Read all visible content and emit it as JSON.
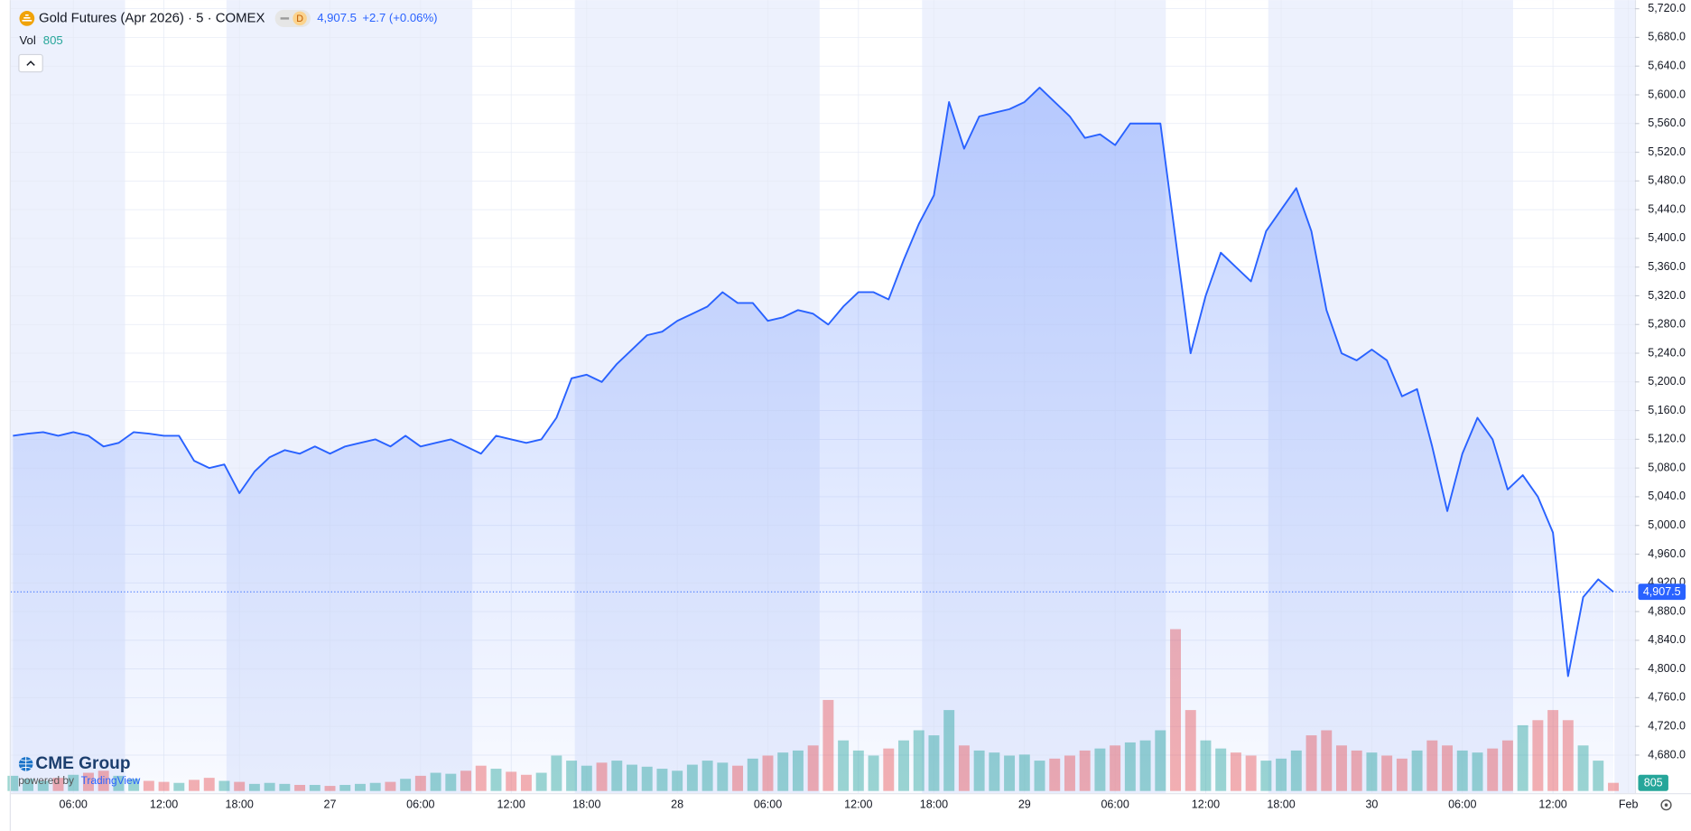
{
  "header": {
    "symbol": "Gold Futures (Apr 2026) · 5 · COMEX",
    "badge": "D",
    "price": "4,907.5",
    "change": "+2.7 (+0.06%)",
    "vol_label": "Vol"
  },
  "branding": {
    "logo": "CME Group",
    "powered": "powered by",
    "platform": "TradingView"
  },
  "chart_data": {
    "type": "line",
    "color": "#2962ff",
    "up_color": "#26a69a",
    "down_color": "#ef5350",
    "grid": true,
    "categories": [
      null,
      null,
      null,
      null,
      "06:00",
      null,
      null,
      null,
      null,
      null,
      "12:00",
      null,
      null,
      null,
      null,
      "18:00",
      null,
      null,
      null,
      null,
      null,
      "27",
      null,
      null,
      null,
      null,
      null,
      "06:00",
      null,
      null,
      null,
      null,
      null,
      "12:00",
      null,
      null,
      null,
      null,
      "18:00",
      null,
      null,
      null,
      null,
      null,
      "28",
      null,
      null,
      null,
      null,
      null,
      "06:00",
      null,
      null,
      null,
      null,
      null,
      "12:00",
      null,
      null,
      null,
      null,
      "18:00",
      null,
      null,
      null,
      null,
      null,
      "29",
      null,
      null,
      null,
      null,
      null,
      "06:00",
      null,
      null,
      null,
      null,
      null,
      "12:00",
      null,
      null,
      null,
      null,
      "18:00",
      null,
      null,
      null,
      null,
      null,
      "30",
      null,
      null,
      null,
      null,
      null,
      "06:00",
      null,
      null,
      null,
      null,
      null,
      "12:00",
      null,
      null,
      null,
      null,
      "Feb"
    ],
    "values": [
      5125,
      5128,
      5130,
      5125,
      5130,
      5125,
      5110,
      5115,
      5130,
      5128,
      5125,
      5125,
      5090,
      5080,
      5085,
      5045,
      5075,
      5095,
      5105,
      5100,
      5110,
      5100,
      5110,
      5115,
      5120,
      5110,
      5125,
      5110,
      5115,
      5120,
      5110,
      5100,
      5125,
      5120,
      5115,
      5120,
      5150,
      5205,
      5210,
      5200,
      5225,
      5245,
      5265,
      5270,
      5285,
      5295,
      5305,
      5325,
      5310,
      5310,
      5285,
      5290,
      5300,
      5295,
      5280,
      5305,
      5325,
      5325,
      5315,
      5370,
      5420,
      5460,
      5590,
      5525,
      5570,
      5575,
      5580,
      5590,
      5610,
      5590,
      5570,
      5540,
      5545,
      5530,
      5560,
      5560,
      5560,
      5400,
      5240,
      5320,
      5380,
      5360,
      5340,
      5410,
      5440,
      5470,
      5410,
      5300,
      5240,
      5230,
      5245,
      5230,
      5180,
      5190,
      5110,
      5020,
      5100,
      5150,
      5120,
      5050,
      5070,
      5040,
      4990,
      4790,
      4900,
      4925,
      4907.5,
      null
    ],
    "volume": [
      1500,
      1200,
      1000,
      1300,
      1600,
      1800,
      2000,
      1500,
      1200,
      1000,
      900,
      800,
      1100,
      1300,
      1000,
      900,
      700,
      800,
      700,
      600,
      600,
      500,
      600,
      700,
      800,
      900,
      1200,
      1500,
      1800,
      1700,
      2000,
      2500,
      2200,
      1900,
      1600,
      1800,
      3500,
      3000,
      2500,
      2800,
      3000,
      2600,
      2400,
      2200,
      2000,
      2600,
      3000,
      2800,
      2500,
      3200,
      3500,
      3800,
      4000,
      4500,
      9000,
      5000,
      4000,
      3500,
      4200,
      5000,
      6000,
      5500,
      8000,
      4500,
      4000,
      3800,
      3500,
      3600,
      3000,
      3200,
      3500,
      4000,
      4200,
      4500,
      4800,
      5000,
      6000,
      16000,
      8000,
      5000,
      4200,
      3800,
      3500,
      3000,
      3200,
      4000,
      5500,
      6000,
      4500,
      4000,
      3800,
      3500,
      3200,
      4000,
      5000,
      4500,
      4000,
      3800,
      4200,
      5000,
      6500,
      7000,
      8000,
      7000,
      4500,
      3000,
      805,
      null
    ],
    "ylim": [
      4627,
      5732
    ],
    "yticks": [
      {
        "value": 4680,
        "label": "4,680.0"
      },
      {
        "value": 4720,
        "label": "4,720.0"
      },
      {
        "value": 4760,
        "label": "4,760.0"
      },
      {
        "value": 4800,
        "label": "4,800.0"
      },
      {
        "value": 4840,
        "label": "4,840.0"
      },
      {
        "value": 4880,
        "label": "4,880.0"
      },
      {
        "value": 4920,
        "label": "4,920.0"
      },
      {
        "value": 4960,
        "label": "4,960.0"
      },
      {
        "value": 5000,
        "label": "5,000.0"
      },
      {
        "value": 5040,
        "label": "5,040.0"
      },
      {
        "value": 5080,
        "label": "5,080.0"
      },
      {
        "value": 5120,
        "label": "5,120.0"
      },
      {
        "value": 5160,
        "label": "5,160.0"
      },
      {
        "value": 5200,
        "label": "5,200.0"
      },
      {
        "value": 5240,
        "label": "5,240.0"
      },
      {
        "value": 5280,
        "label": "5,280.0"
      },
      {
        "value": 5320,
        "label": "5,320.0"
      },
      {
        "value": 5360,
        "label": "5,360.0"
      },
      {
        "value": 5400,
        "label": "5,400.0"
      },
      {
        "value": 5440,
        "label": "5,440.0"
      },
      {
        "value": 5480,
        "label": "5,480.0"
      },
      {
        "value": 5520,
        "label": "5,520.0"
      },
      {
        "value": 5560,
        "label": "5,560.0"
      },
      {
        "value": 5600,
        "label": "5,600.0"
      },
      {
        "value": 5640,
        "label": "5,640.0"
      },
      {
        "value": 5680,
        "label": "5,680.0"
      },
      {
        "value": 5720,
        "label": "5,720.0"
      }
    ],
    "last_price": {
      "value": 4907.5,
      "label": "4,907.5"
    }
  }
}
